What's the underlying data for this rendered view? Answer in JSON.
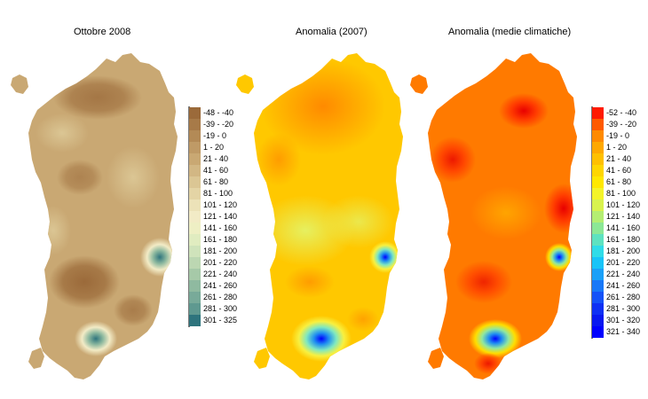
{
  "panels": [
    {
      "id": "p1",
      "title": "Ottobre 2008",
      "colors": [
        "#9b6a3a",
        "#a77a48",
        "#b38a56",
        "#bf9a66",
        "#c9a873",
        "#d2b784",
        "#dbc694",
        "#e4d4a5",
        "#ece2b8",
        "#f2ebc6",
        "#eeefc4",
        "#e0ecc0",
        "#cfe3bb",
        "#bcd7b2",
        "#a6c9a8",
        "#8fbaa0",
        "#78aa99",
        "#5f9990",
        "#478887",
        "#2e747d"
      ],
      "legend": [
        {
          "label": "-48 - -40",
          "color": "#9b6a3a"
        },
        {
          "label": "-39 - -20",
          "color": "#a77a48"
        },
        {
          "label": "-19 - 0",
          "color": "#b38a56"
        },
        {
          "label": "1 - 20",
          "color": "#bf9a66"
        },
        {
          "label": "21 - 40",
          "color": "#c9a873"
        },
        {
          "label": "41 - 60",
          "color": "#d2b784"
        },
        {
          "label": "61 - 80",
          "color": "#dbc694"
        },
        {
          "label": "81 - 100",
          "color": "#e4d4a5"
        },
        {
          "label": "101 - 120",
          "color": "#ece2b8"
        },
        {
          "label": "121 - 140",
          "color": "#f2ebc6"
        },
        {
          "label": "141 - 160",
          "color": "#eeefc4"
        },
        {
          "label": "161 - 180",
          "color": "#e0ecc0"
        },
        {
          "label": "181 - 200",
          "color": "#cfe3bb"
        },
        {
          "label": "201 - 220",
          "color": "#bcd7b2"
        },
        {
          "label": "221 - 240",
          "color": "#a6c9a8"
        },
        {
          "label": "241 - 260",
          "color": "#8fbaa0"
        },
        {
          "label": "261 - 280",
          "color": "#78aa99"
        },
        {
          "label": "281 - 300",
          "color": "#5f9990"
        },
        {
          "label": "301 - 325",
          "color": "#2e747d"
        }
      ]
    },
    {
      "id": "p2",
      "title": "Anomalia (2007)",
      "colors": [
        "#ff8a00",
        "#ff9a00",
        "#ffaa00",
        "#ffba00",
        "#ffc800",
        "#ffd400",
        "#ffe000",
        "#ffec1a",
        "#f8f040",
        "#e6f060",
        "#c8f080",
        "#a8eca0",
        "#80e8c0",
        "#50d8e0",
        "#20c0f0",
        "#2090f0",
        "#2060f0",
        "#1030e8",
        "#0010e0",
        "#0000ff"
      ]
    },
    {
      "id": "p3",
      "title": "Anomalia (medie climatiche)",
      "colors": [
        "#ff1a00",
        "#ff3a00",
        "#ff5200",
        "#ff6600",
        "#ff7a00",
        "#ff8e00",
        "#ffa200",
        "#ffb600",
        "#ffca00",
        "#ffde00",
        "#ffee20",
        "#e8f040",
        "#c0ee70",
        "#90e8a0",
        "#60e0d0",
        "#30c8f0",
        "#2090f0",
        "#2050f0",
        "#1020e8",
        "#0000ff"
      ],
      "legend": [
        {
          "label": "-52 - -40",
          "color": "#ff1a00"
        },
        {
          "label": "-39 - -20",
          "color": "#ff5a00"
        },
        {
          "label": "-19 - 0",
          "color": "#ff8a00"
        },
        {
          "label": "1 - 20",
          "color": "#ffa800"
        },
        {
          "label": "21 - 40",
          "color": "#ffc000"
        },
        {
          "label": "41 - 60",
          "color": "#ffd600"
        },
        {
          "label": "61 - 80",
          "color": "#ffe800"
        },
        {
          "label": "81 - 100",
          "color": "#f4f42a"
        },
        {
          "label": "101 - 120",
          "color": "#d8f24e"
        },
        {
          "label": "121 - 140",
          "color": "#b4ee72"
        },
        {
          "label": "141 - 160",
          "color": "#8ce896"
        },
        {
          "label": "161 - 180",
          "color": "#5ee2c0"
        },
        {
          "label": "181 - 200",
          "color": "#30dce8"
        },
        {
          "label": "201 - 220",
          "color": "#18c4f8"
        },
        {
          "label": "221 - 240",
          "color": "#1aa0f8"
        },
        {
          "label": "241 - 260",
          "color": "#1878f8"
        },
        {
          "label": "261 - 280",
          "color": "#1452f8"
        },
        {
          "label": "281 - 300",
          "color": "#0e30f4"
        },
        {
          "label": "301 - 320",
          "color": "#0818f0"
        },
        {
          "label": "321 - 340",
          "color": "#0000ff"
        }
      ]
    }
  ]
}
